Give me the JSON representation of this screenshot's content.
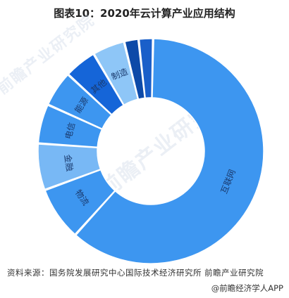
{
  "title": "图表10：2020年云计算产业应用结构",
  "watermark": "前瞻产业研究院",
  "source": "资料来源：国务院发展研究中心国际技术经济研究所  前瞻产业研究院",
  "footer": "@前瞻经济学人APP",
  "chart_data": {
    "type": "pie",
    "donut": true,
    "categories": [
      "互联网",
      "物流",
      "金融",
      "电信",
      "能源",
      "其他",
      "制造",
      "",
      ""
    ],
    "values": [
      59.5,
      7.5,
      6.5,
      5.5,
      5.0,
      4.5,
      4.5,
      2.0,
      2.0
    ],
    "colors": [
      "#3d96f0",
      "#3d96f0",
      "#78b8f5",
      "#3d96f0",
      "#3d96f0",
      "#1565d8",
      "#8ec6f7",
      "#0d4aa8",
      "#1a5fc9"
    ],
    "legend": "none"
  }
}
